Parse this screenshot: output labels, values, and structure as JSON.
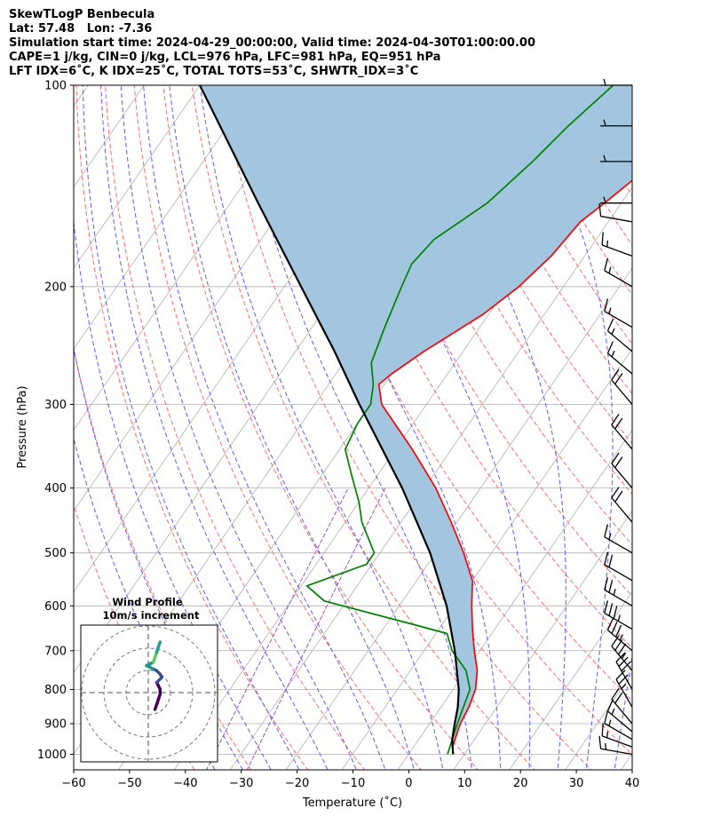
{
  "header": {
    "line1": "SkewTLogP Benbecula",
    "line2": "Lat: 57.48   Lon: -7.36",
    "line3": "Simulation start time: 2024-04-29_00:00:00, Valid time: 2024-04-30T01:00:00.00",
    "line4": "CAPE=1 j/kg, CIN=0 j/kg, LCL=976 hPa, LFC=981 hPa, EQ=951 hPa",
    "line5": "LFT IDX=6˚C, K IDX=25˚C, TOTAL TOTS=53˚C, SHWTR_IDX=3˚C"
  },
  "colors": {
    "temperature": "#ff0000",
    "dewpoint": "#008000",
    "parcel": "#000000",
    "cape_fill": "#a2c6df",
    "dry_adiabat": "#ff6b6b",
    "moist_adiabat": "#5b5bff",
    "mixing_ratio": "#a050c8",
    "isotherm": "#b0b0b0",
    "isobar": "#b0b0b0"
  },
  "chart_data": {
    "type": "skewt-logp",
    "xlabel": "Temperature (˚C)",
    "ylabel": "Pressure (hPa)",
    "xlim": [
      -60,
      40
    ],
    "ylim": [
      1050,
      100
    ],
    "y_scale": "log",
    "grid": true,
    "x_ticks": [
      -60,
      -50,
      -40,
      -30,
      -20,
      -10,
      0,
      10,
      20,
      30,
      40
    ],
    "x_tick_labels": [
      "−60",
      "−50",
      "−40",
      "−30",
      "−20",
      "−10",
      "0",
      "10",
      "20",
      "30",
      "40"
    ],
    "y_ticks": [
      100,
      200,
      300,
      400,
      500,
      600,
      700,
      800,
      900,
      1000
    ],
    "y_tick_labels": [
      "100",
      "200",
      "300",
      "400",
      "500",
      "600",
      "700",
      "800",
      "900",
      "1000"
    ],
    "series": [
      {
        "key": "temperature",
        "pressure": [
          1000,
          975,
          950,
          925,
          900,
          850,
          800,
          750,
          700,
          650,
          600,
          550,
          500,
          450,
          400,
          350,
          300,
          280,
          270,
          250,
          220,
          200,
          180,
          160,
          150,
          130,
          115,
          100
        ],
        "values": [
          8,
          7,
          6.5,
          6,
          5.5,
          5,
          4,
          2,
          -1,
          -4,
          -7,
          -10,
          -15,
          -21,
          -28,
          -37,
          -48,
          -51,
          -50,
          -47,
          -41,
          -38,
          -36,
          -35,
          -33,
          -29,
          -27,
          -26
        ]
      },
      {
        "key": "dewpoint",
        "pressure": [
          1000,
          975,
          950,
          925,
          900,
          850,
          800,
          750,
          700,
          660,
          640,
          590,
          560,
          520,
          500,
          450,
          420,
          380,
          350,
          320,
          300,
          280,
          260,
          230,
          200,
          185,
          170,
          150,
          130,
          115,
          100
        ],
        "values": [
          7,
          6.5,
          6,
          5.5,
          5,
          4,
          3,
          0,
          -5,
          -8,
          -15,
          -34,
          -39,
          -31,
          -31,
          -37,
          -40,
          -45,
          -49,
          -50,
          -50,
          -52,
          -55,
          -57,
          -59,
          -60,
          -59,
          -54,
          -51,
          -49,
          -46
        ]
      },
      {
        "key": "parcel",
        "pressure": [
          1000,
          975,
          950,
          900,
          850,
          800,
          700,
          600,
          500,
          400,
          300,
          250,
          200,
          150,
          100
        ],
        "values": [
          8,
          7,
          6,
          4.5,
          3,
          1,
          -4.5,
          -11.5,
          -21,
          -34,
          -52,
          -63,
          -77,
          -95,
          -120
        ]
      }
    ],
    "cape_fill": "between parcel and temperature",
    "wind_barbs": {
      "pressure": [
        1000,
        975,
        950,
        925,
        900,
        850,
        800,
        750,
        700,
        650,
        600,
        550,
        500,
        450,
        400,
        350,
        300,
        270,
        250,
        230,
        200,
        180,
        160,
        150,
        130,
        115,
        100
      ],
      "speed_kt": [
        15,
        15,
        15,
        15,
        20,
        25,
        30,
        35,
        35,
        35,
        25,
        20,
        15,
        20,
        20,
        20,
        20,
        15,
        15,
        15,
        15,
        15,
        10,
        5,
        5,
        5,
        5
      ],
      "direction_deg": [
        280,
        290,
        300,
        310,
        320,
        330,
        330,
        320,
        310,
        300,
        300,
        300,
        300,
        320,
        320,
        320,
        320,
        310,
        310,
        300,
        300,
        290,
        280,
        270,
        270,
        270,
        270
      ]
    },
    "inset": {
      "title": "Wind Profile",
      "subtitle": "10m/s increment",
      "u": [
        2,
        2.5,
        3,
        3.5,
        3.5,
        3,
        2.5,
        3.5,
        4,
        3.5,
        2.5,
        1.5,
        0.5,
        -0.5,
        1.5,
        2,
        2.5,
        3,
        3.5
      ],
      "v": [
        -5,
        -3.5,
        -2,
        -0.5,
        1,
        2,
        3,
        4,
        4.5,
        5.5,
        6.5,
        7,
        7.5,
        8,
        9,
        10.5,
        12,
        13.5,
        15
      ]
    }
  }
}
